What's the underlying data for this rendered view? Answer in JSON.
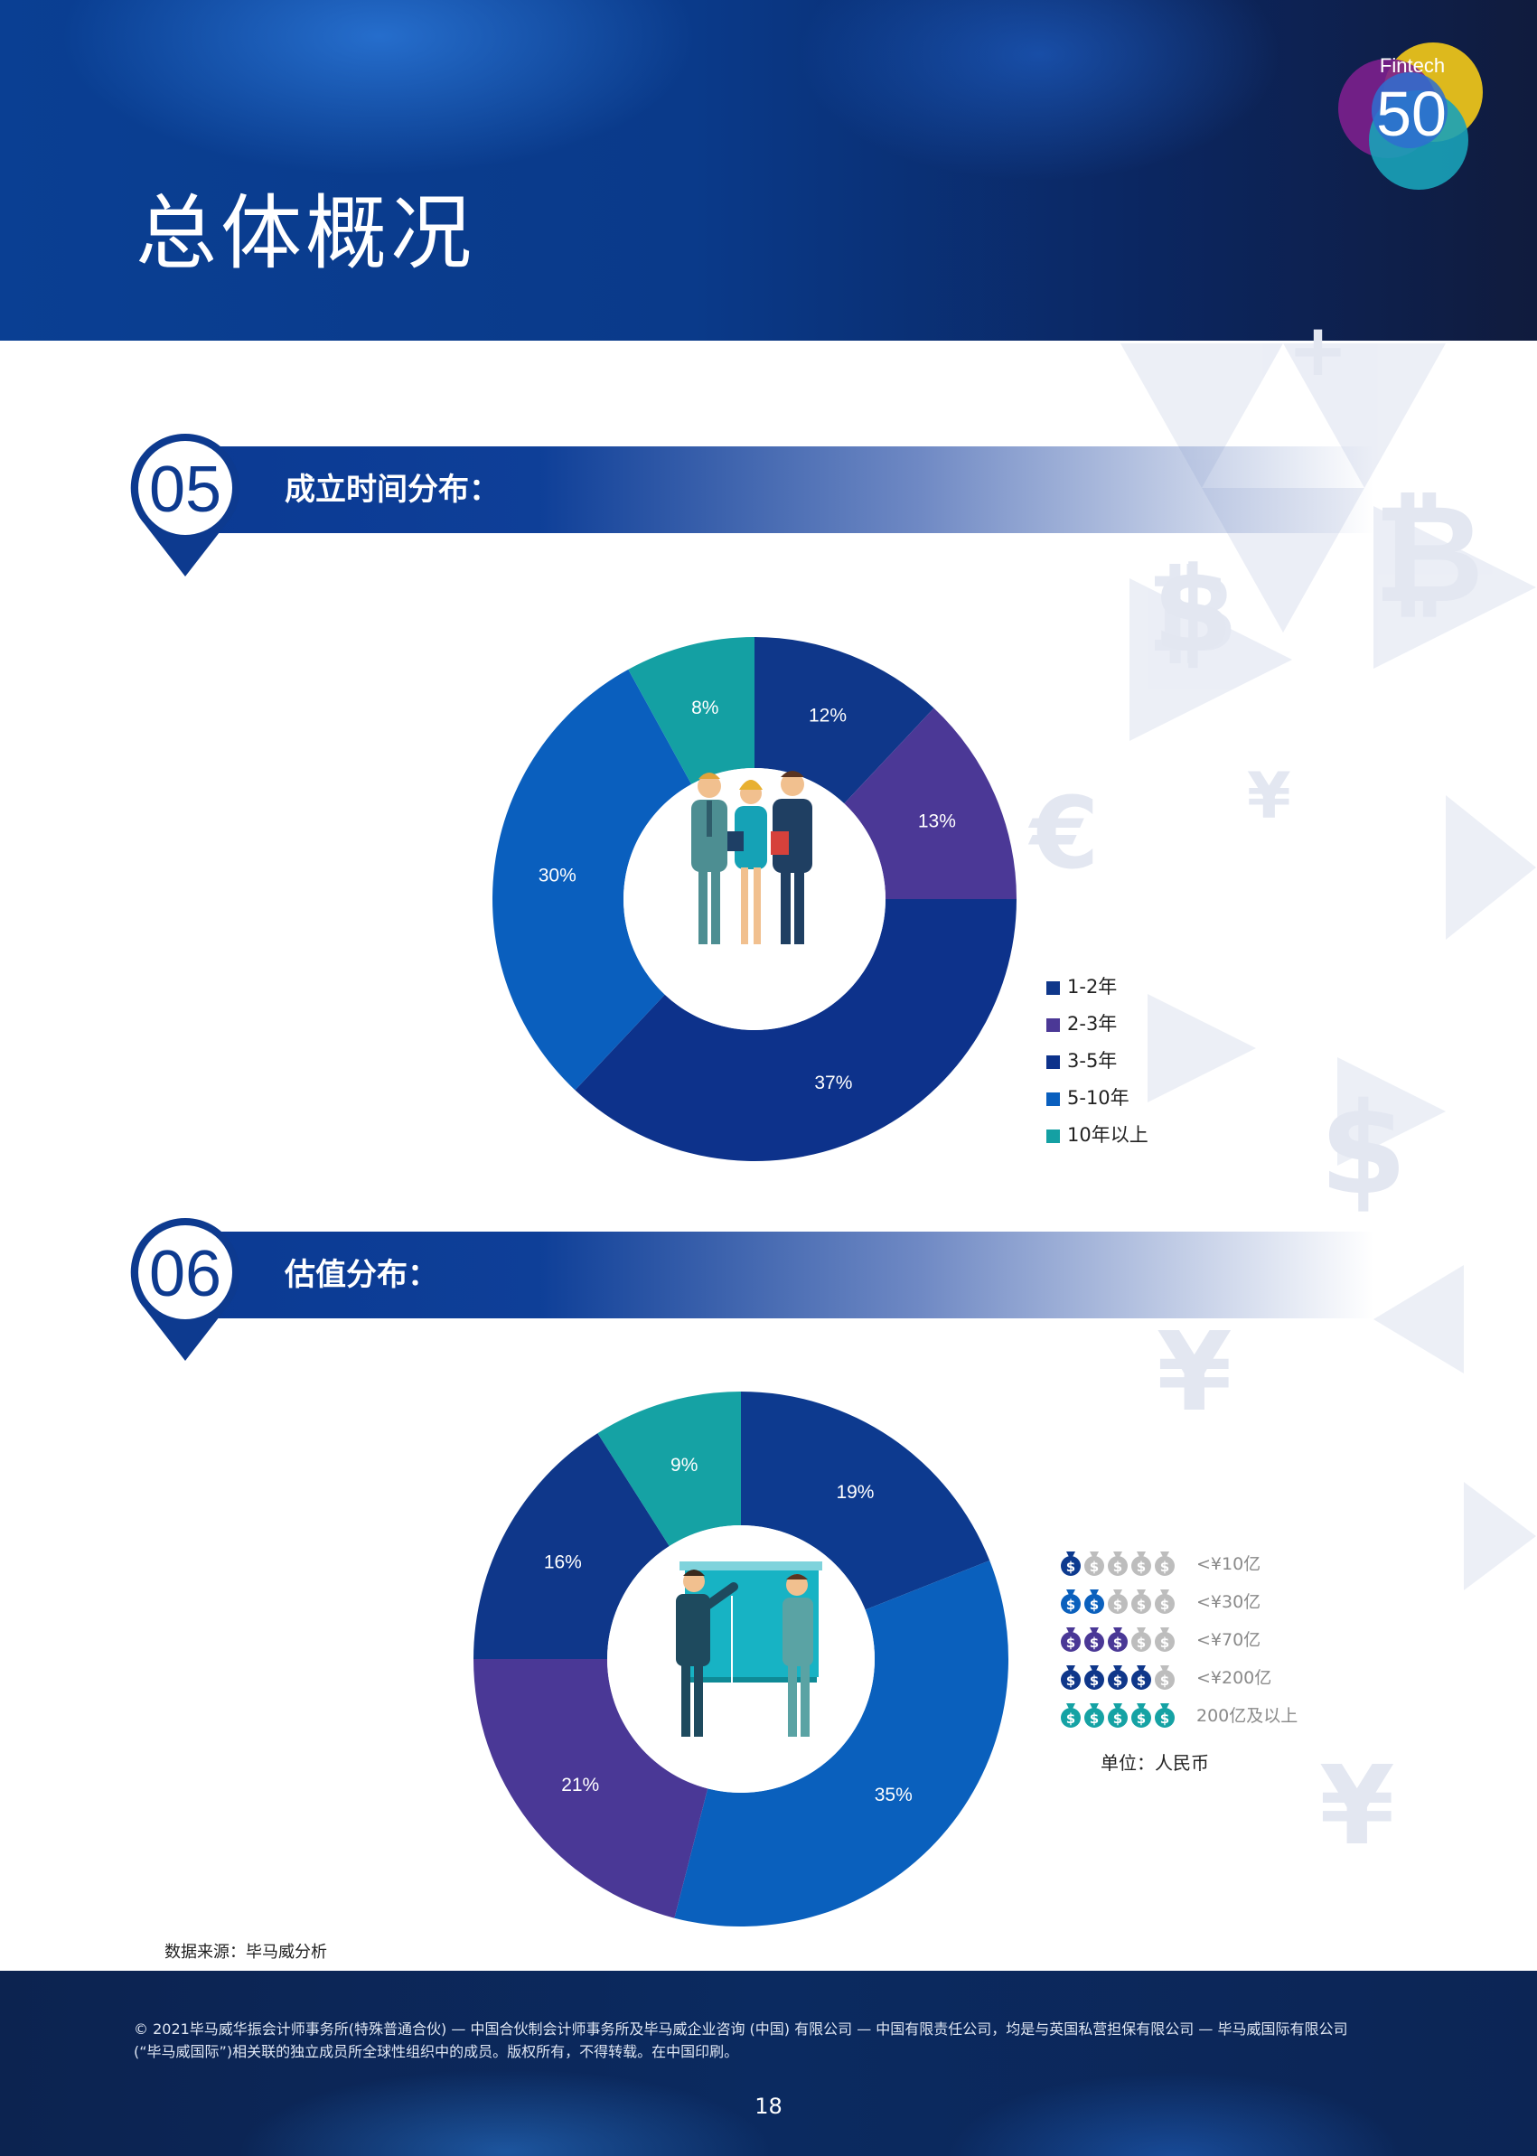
{
  "header": {
    "title": "总体概况",
    "logo_text": "Fintech",
    "logo_number": "50"
  },
  "sections": [
    {
      "number": "05",
      "title": "成立时间分布："
    },
    {
      "number": "06",
      "title": "估值分布："
    }
  ],
  "chart_data": [
    {
      "type": "pie",
      "donut": true,
      "categories": [
        "1-2年",
        "2-3年",
        "3-5年",
        "5-10年",
        "10年以上"
      ],
      "values": [
        12,
        13,
        37,
        30,
        8
      ],
      "value_labels": [
        "12%",
        "13%",
        "37%",
        "30%",
        "8%"
      ],
      "colors": [
        "#0f378a",
        "#4b3896",
        "#0d328b",
        "#0a5fbe",
        "#14a0a3"
      ],
      "legend_position": "bottom-right"
    },
    {
      "type": "pie",
      "donut": true,
      "categories": [
        "<¥10亿",
        "<¥30亿",
        "<¥70亿",
        "<¥200亿",
        "200亿及以上"
      ],
      "values": [
        19,
        35,
        21,
        16,
        9
      ],
      "value_labels": [
        "19%",
        "35%",
        "21%",
        "16%",
        "9%"
      ],
      "colors": [
        "#0d3a8f",
        "#0a60bd",
        "#4a3896",
        "#0f378a",
        "#15a2a4"
      ],
      "legend_icon_counts": [
        1,
        2,
        3,
        4,
        5
      ],
      "legend_position": "right",
      "unit_note": "单位：人民币"
    }
  ],
  "icon_colors": {
    "inactive_bag": "#bdbdbd"
  },
  "source": "数据来源：毕马威分析",
  "footer": {
    "copyright_line1": "© 2021毕马威华振会计师事务所(特殊普通合伙) — 中国合伙制会计师事务所及毕马威企业咨询 (中国) 有限公司 — 中国有限责任公司，均是与英国私营担保有限公司 — 毕马威国际有限公司",
    "copyright_line2": "(“毕马威国际”)相关联的独立成员所全球性组织中的成员。版权所有，不得转载。在中国印刷。",
    "page_number": "18"
  }
}
